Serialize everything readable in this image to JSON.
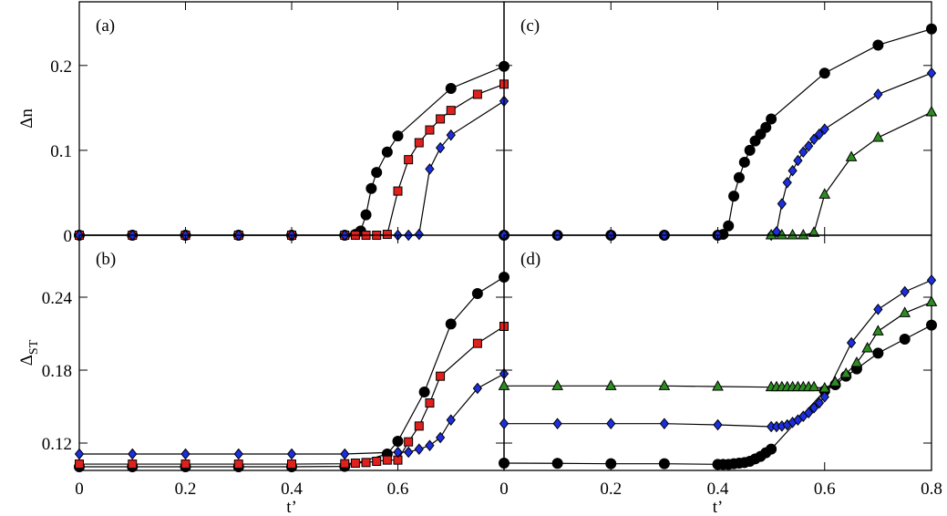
{
  "chart_data": [
    {
      "type": "line",
      "panel_label": "(a)",
      "ylabel": {
        "main": "Δn"
      },
      "xlim": [
        0,
        0.8
      ],
      "ylim": [
        0,
        0.275
      ],
      "xticks": [
        0,
        0.2,
        0.4,
        0.6
      ],
      "yticks": [
        0,
        0.1,
        0.2
      ],
      "show_xtick_labels": false,
      "show_ytick_labels": true,
      "series": [
        {
          "color": "#000000",
          "marker": "circle",
          "x": [
            0,
            0.1,
            0.2,
            0.3,
            0.4,
            0.5,
            0.52,
            0.53,
            0.54,
            0.55,
            0.56,
            0.58,
            0.6,
            0.7,
            0.8
          ],
          "values": [
            0,
            0,
            0,
            0,
            0,
            0,
            0.001,
            0.005,
            0.024,
            0.055,
            0.074,
            0.098,
            0.117,
            0.173,
            0.199
          ]
        },
        {
          "color": "#e0201c",
          "marker": "square",
          "x": [
            0,
            0.1,
            0.2,
            0.3,
            0.4,
            0.5,
            0.52,
            0.54,
            0.56,
            0.58,
            0.6,
            0.62,
            0.64,
            0.66,
            0.68,
            0.7,
            0.75,
            0.8
          ],
          "values": [
            0,
            0,
            0,
            0,
            0,
            0,
            0,
            0,
            0,
            0.001,
            0.052,
            0.089,
            0.109,
            0.124,
            0.137,
            0.147,
            0.166,
            0.178
          ]
        },
        {
          "color": "#1c2fe0",
          "marker": "diamond",
          "x": [
            0,
            0.1,
            0.2,
            0.3,
            0.4,
            0.5,
            0.6,
            0.62,
            0.64,
            0.66,
            0.68,
            0.7,
            0.8
          ],
          "values": [
            0,
            0,
            0,
            0,
            0,
            0,
            0,
            0,
            0.001,
            0.078,
            0.103,
            0.118,
            0.158
          ]
        }
      ]
    },
    {
      "type": "line",
      "panel_label": "(b)",
      "ylabel": {
        "main": "Δ",
        "sub": "ST"
      },
      "xlabel": "t’",
      "xlim": [
        0,
        0.8
      ],
      "ylim": [
        0.0975,
        0.291
      ],
      "xticks": [
        0,
        0.2,
        0.4,
        0.6
      ],
      "yticks": [
        0.12,
        0.18,
        0.24
      ],
      "show_xtick_labels": true,
      "show_ytick_labels": true,
      "series": [
        {
          "color": "#000000",
          "marker": "circle",
          "x": [
            0,
            0.1,
            0.2,
            0.3,
            0.4,
            0.5,
            0.58,
            0.6,
            0.65,
            0.7,
            0.75,
            0.8
          ],
          "values": [
            0.1005,
            0.1005,
            0.1005,
            0.1005,
            0.1005,
            0.1008,
            0.111,
            0.1215,
            0.162,
            0.218,
            0.243,
            0.2565
          ]
        },
        {
          "color": "#e0201c",
          "marker": "square",
          "x": [
            0,
            0.1,
            0.2,
            0.3,
            0.4,
            0.5,
            0.52,
            0.54,
            0.56,
            0.58,
            0.6,
            0.62,
            0.64,
            0.66,
            0.68,
            0.75,
            0.8
          ],
          "values": [
            0.1027,
            0.1027,
            0.1027,
            0.1027,
            0.1027,
            0.103,
            0.1035,
            0.104,
            0.105,
            0.106,
            0.106,
            0.121,
            0.134,
            0.153,
            0.175,
            0.202,
            0.216
          ]
        },
        {
          "color": "#1c2fe0",
          "marker": "diamond",
          "x": [
            0,
            0.1,
            0.2,
            0.3,
            0.4,
            0.5,
            0.6,
            0.62,
            0.64,
            0.66,
            0.68,
            0.7,
            0.75,
            0.8
          ],
          "values": [
            0.111,
            0.111,
            0.111,
            0.111,
            0.111,
            0.111,
            0.1125,
            0.1125,
            0.115,
            0.118,
            0.1245,
            0.139,
            0.165,
            0.177
          ]
        }
      ]
    },
    {
      "type": "line",
      "panel_label": "(c)",
      "xlim": [
        0,
        0.8
      ],
      "ylim": [
        0,
        0.275
      ],
      "xticks": [
        0,
        0.2,
        0.4,
        0.6,
        0.8
      ],
      "yticks": [
        0,
        0.1,
        0.2
      ],
      "show_xtick_labels": false,
      "show_ytick_labels": false,
      "series": [
        {
          "color": "#000000",
          "marker": "circle",
          "x": [
            0,
            0.1,
            0.2,
            0.3,
            0.4,
            0.41,
            0.42,
            0.43,
            0.44,
            0.45,
            0.46,
            0.47,
            0.48,
            0.49,
            0.5,
            0.6,
            0.7,
            0.8
          ],
          "values": [
            0,
            0,
            0,
            0,
            0,
            0.001,
            0.011,
            0.046,
            0.068,
            0.086,
            0.1,
            0.111,
            0.119,
            0.127,
            0.137,
            0.191,
            0.224,
            0.243
          ]
        },
        {
          "color": "#1c2fe0",
          "marker": "diamond",
          "x": [
            0,
            0.1,
            0.2,
            0.3,
            0.4,
            0.5,
            0.51,
            0.52,
            0.53,
            0.54,
            0.55,
            0.56,
            0.57,
            0.58,
            0.59,
            0.6,
            0.7,
            0.8
          ],
          "values": [
            0,
            0,
            0,
            0,
            0,
            0,
            0.004,
            0.037,
            0.062,
            0.076,
            0.088,
            0.098,
            0.105,
            0.113,
            0.119,
            0.125,
            0.166,
            0.191
          ]
        },
        {
          "color": "#2e8b22",
          "marker": "triangle",
          "x": [
            0.5,
            0.52,
            0.54,
            0.56,
            0.58,
            0.6,
            0.65,
            0.7,
            0.8
          ],
          "values": [
            0,
            0,
            0,
            0,
            0.003,
            0.048,
            0.092,
            0.115,
            0.145
          ]
        }
      ]
    },
    {
      "type": "line",
      "panel_label": "(d)",
      "xlabel": "t’",
      "xlim": [
        0,
        0.8
      ],
      "ylim": [
        0.0975,
        0.291
      ],
      "xticks": [
        0,
        0.2,
        0.4,
        0.6,
        0.8
      ],
      "yticks": [
        0.12,
        0.18,
        0.24
      ],
      "show_xtick_labels": true,
      "show_ytick_labels": false,
      "series": [
        {
          "color": "#000000",
          "marker": "circle",
          "x": [
            0,
            0.1,
            0.2,
            0.3,
            0.4,
            0.41,
            0.42,
            0.43,
            0.44,
            0.45,
            0.46,
            0.47,
            0.48,
            0.49,
            0.5,
            0.6,
            0.62,
            0.64,
            0.66,
            0.7,
            0.75,
            0.8
          ],
          "values": [
            0.1035,
            0.1033,
            0.103,
            0.103,
            0.1025,
            0.1025,
            0.1025,
            0.103,
            0.1035,
            0.104,
            0.105,
            0.107,
            0.109,
            0.112,
            0.115,
            0.163,
            0.168,
            0.175,
            0.181,
            0.194,
            0.2055,
            0.217
          ]
        },
        {
          "color": "#1c2fe0",
          "marker": "diamond",
          "x": [
            0,
            0.1,
            0.2,
            0.3,
            0.4,
            0.5,
            0.51,
            0.52,
            0.53,
            0.54,
            0.55,
            0.56,
            0.57,
            0.58,
            0.59,
            0.6,
            0.65,
            0.7,
            0.75,
            0.8
          ],
          "values": [
            0.136,
            0.136,
            0.136,
            0.136,
            0.135,
            0.1335,
            0.1335,
            0.134,
            0.135,
            0.137,
            0.139,
            0.142,
            0.145,
            0.149,
            0.153,
            0.158,
            0.2025,
            0.23,
            0.2445,
            0.254
          ]
        },
        {
          "color": "#2e8b22",
          "marker": "triangle",
          "x": [
            0,
            0.1,
            0.2,
            0.3,
            0.4,
            0.5,
            0.51,
            0.52,
            0.53,
            0.54,
            0.55,
            0.56,
            0.57,
            0.58,
            0.6,
            0.62,
            0.64,
            0.66,
            0.68,
            0.7,
            0.75,
            0.8
          ],
          "values": [
            0.167,
            0.167,
            0.167,
            0.167,
            0.1665,
            0.166,
            0.166,
            0.166,
            0.166,
            0.166,
            0.166,
            0.166,
            0.166,
            0.166,
            0.165,
            0.17,
            0.177,
            0.186,
            0.198,
            0.212,
            0.227,
            0.236
          ]
        }
      ]
    }
  ]
}
